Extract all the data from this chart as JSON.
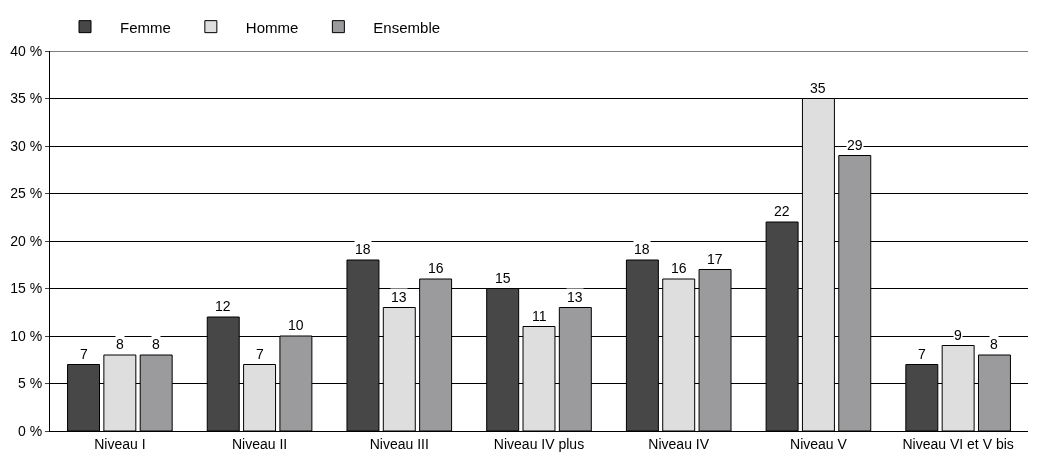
{
  "chart_data": {
    "type": "bar",
    "categories": [
      "Niveau I",
      "Niveau II",
      "Niveau III",
      "Niveau IV plus",
      "Niveau IV",
      "Niveau V",
      "Niveau VI et V bis"
    ],
    "series": [
      {
        "name": "Femme",
        "color": "#474747",
        "values": [
          7,
          12,
          18,
          15,
          18,
          22,
          7
        ]
      },
      {
        "name": "Homme",
        "color": "#dedede",
        "values": [
          8,
          7,
          13,
          11,
          16,
          35,
          9
        ]
      },
      {
        "name": "Ensemble",
        "color": "#9b9b9d",
        "values": [
          8,
          10,
          16,
          13,
          17,
          29,
          8
        ]
      }
    ],
    "ylim": [
      0,
      40
    ],
    "yticks": [
      {
        "value": 0,
        "label": "0 %"
      },
      {
        "value": 5,
        "label": "5 %"
      },
      {
        "value": 10,
        "label": "10 %"
      },
      {
        "value": 15,
        "label": "15 %"
      },
      {
        "value": 20,
        "label": "20 %"
      },
      {
        "value": 25,
        "label": "25 %"
      },
      {
        "value": 30,
        "label": "30 %"
      },
      {
        "value": 35,
        "label": "35 %"
      },
      {
        "value": 40,
        "label": "40 %"
      }
    ],
    "grid": "y",
    "legend": "top left",
    "data_labels": true
  }
}
